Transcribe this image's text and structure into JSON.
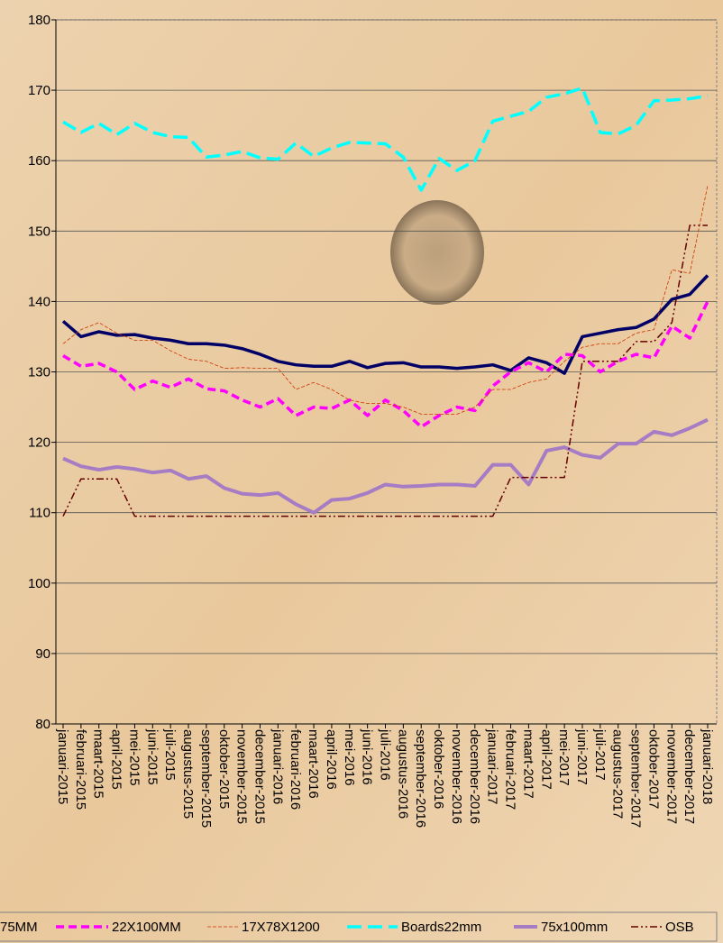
{
  "chart_data": {
    "type": "line",
    "categories": [
      "januari-2015",
      "februari-2015",
      "maart-2015",
      "april-2015",
      "mei-2015",
      "juni-2015",
      "juli-2015",
      "augustus-2015",
      "september-2015",
      "oktober-2015",
      "november-2015",
      "december-2015",
      "januari-2016",
      "februari-2016",
      "maart-2016",
      "april-2016",
      "mei-2016",
      "juni-2016",
      "juli-2016",
      "augustus-2016",
      "september-2016",
      "oktober-2016",
      "november-2016",
      "december-2016",
      "januari-2017",
      "februari-2017",
      "maart-2017",
      "april-2017",
      "mei-2017",
      "juni-2017",
      "juli-2017",
      "augustus-2017",
      "september-2017",
      "oktober-2017",
      "november-2017",
      "december-2017",
      "januari-2018"
    ],
    "series": [
      {
        "name": "75MM",
        "color": "#000066",
        "width": 3.5,
        "dash": "none",
        "values": [
          137.2,
          135,
          135.7,
          135.2,
          135.3,
          134.8,
          134.5,
          134,
          134,
          133.8,
          133.3,
          132.5,
          131.5,
          131,
          130.8,
          130.8,
          131.5,
          130.6,
          131.2,
          131.3,
          130.7,
          130.7,
          130.5,
          130.7,
          131,
          130.2,
          132,
          131.3,
          129.8,
          135,
          135.5,
          136,
          136.3,
          137.5,
          140.3,
          141,
          143.7
        ]
      },
      {
        "name": "22X100MM",
        "color": "#ff00ff",
        "width": 3.5,
        "dash": "9 5",
        "values": [
          132.3,
          130.8,
          131.2,
          130,
          127.5,
          128.7,
          127.8,
          129,
          127.6,
          127.3,
          126,
          125,
          126.2,
          123.8,
          125,
          124.8,
          126,
          123.8,
          126,
          124.5,
          122.2,
          123.8,
          125,
          124.5,
          128,
          130,
          131.3,
          130,
          132.5,
          132.3,
          130,
          131.5,
          132.5,
          132,
          136.5,
          134.8,
          140
        ]
      },
      {
        "name": "17X78X1200",
        "color": "#cc3300",
        "width": 0.8,
        "dash": "4 2",
        "values": [
          134,
          136,
          137,
          135.5,
          134.5,
          134.5,
          133,
          131.8,
          131.5,
          130.5,
          130.6,
          130.5,
          130.5,
          127.5,
          128.5,
          127.5,
          126,
          125.5,
          125.5,
          125,
          124,
          124,
          124,
          125,
          127.5,
          127.5,
          128.5,
          129,
          131.5,
          133.5,
          134,
          134,
          135.5,
          136,
          144.5,
          144,
          156.5
        ]
      },
      {
        "name": "Boards22mm",
        "color": "#00ffff",
        "width": 3.5,
        "dash": "16 7",
        "values": [
          165.5,
          164,
          165.3,
          163.7,
          165.3,
          164,
          163.4,
          163.3,
          160.5,
          160.8,
          161.3,
          160.4,
          160.2,
          162.5,
          160.6,
          161.8,
          162.6,
          162.5,
          162.4,
          160.5,
          155.8,
          160.3,
          158.6,
          160,
          165.6,
          166.3,
          167,
          169,
          169.5,
          170.3,
          164,
          163.8,
          165,
          168.5,
          168.6,
          168.8,
          169.2
        ]
      },
      {
        "name": "75x100mm",
        "color": "#a67cc4",
        "width": 4,
        "dash": "none",
        "values": [
          117.7,
          116.6,
          116.1,
          116.5,
          116.2,
          115.7,
          116,
          114.8,
          115.2,
          113.5,
          112.7,
          112.5,
          112.8,
          111.2,
          110,
          111.8,
          112,
          112.8,
          114,
          113.7,
          113.8,
          114,
          114,
          113.8,
          116.8,
          116.8,
          114,
          118.8,
          119.3,
          118.2,
          117.8,
          119.8,
          119.8,
          121.5,
          121,
          122,
          123.2
        ]
      },
      {
        "name": "OSB",
        "color": "#660000",
        "width": 1.5,
        "dash": "8 3 2 3 2 3",
        "values": [
          109.5,
          114.8,
          114.8,
          114.8,
          109.5,
          109.5,
          109.5,
          109.5,
          109.5,
          109.5,
          109.5,
          109.5,
          109.5,
          109.5,
          109.5,
          109.5,
          109.5,
          109.5,
          109.5,
          109.5,
          109.5,
          109.5,
          109.5,
          109.5,
          109.5,
          115,
          115,
          115,
          115,
          131.5,
          131.5,
          131.5,
          134.3,
          134.3,
          137,
          150.8,
          150.8
        ]
      }
    ],
    "ylim": [
      80,
      180
    ],
    "yticks": [
      80,
      90,
      100,
      110,
      120,
      130,
      140,
      150,
      160,
      170,
      180
    ],
    "grid": true,
    "legend": "bottom"
  }
}
